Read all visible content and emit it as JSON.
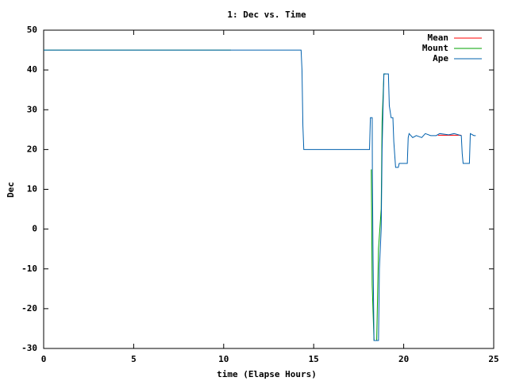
{
  "chart_data": {
    "type": "line",
    "title": "1: Dec vs. Time",
    "x_label": "time (Elapse Hours)",
    "y_label": "Dec",
    "xlim": [
      0,
      25
    ],
    "xticks": [
      0,
      5,
      10,
      15,
      20,
      25
    ],
    "ylim": [
      -30,
      50
    ],
    "yticks": [
      -30,
      -20,
      -10,
      0,
      10,
      20,
      30,
      40,
      50
    ],
    "legend": "top-right",
    "series": [
      {
        "name": "Mean",
        "color": "#ff0000",
        "x": [
          21.9,
          22.5,
          23.2
        ],
        "values": [
          23.6,
          23.6,
          23.6
        ]
      },
      {
        "name": "Mount",
        "color": "#00a000",
        "x": [
          0,
          10.4,
          10.5,
          18.2,
          18.25,
          18.35,
          18.5,
          18.6,
          18.75,
          18.8,
          18.9,
          19.0
        ],
        "values": [
          45,
          45,
          null,
          15,
          -14,
          -28,
          -28,
          -5,
          5,
          27,
          39,
          39
        ]
      },
      {
        "name": "Ape",
        "color": "#0060ad",
        "x": [
          0,
          14.3,
          14.35,
          14.4,
          14.45,
          18.1,
          18.15,
          18.25,
          18.26,
          18.3,
          18.35,
          18.6,
          18.65,
          18.75,
          18.8,
          18.85,
          18.9,
          19.15,
          19.2,
          19.3,
          19.4,
          19.45,
          19.55,
          19.7,
          19.75,
          20.2,
          20.25,
          20.3,
          20.5,
          20.7,
          21.0,
          21.2,
          21.5,
          21.8,
          22.0,
          22.5,
          22.8,
          23.2,
          23.25,
          23.3,
          23.65,
          23.7,
          23.9,
          24.0
        ],
        "values": [
          45,
          45,
          40,
          26,
          20,
          20,
          28,
          28,
          14,
          -8,
          -28,
          -28,
          -10,
          0,
          20,
          30,
          39,
          39,
          31,
          28,
          28,
          22,
          15.5,
          15.5,
          16.5,
          16.5,
          23,
          24,
          23,
          23.5,
          23,
          24,
          23.5,
          23.5,
          24,
          23.7,
          24,
          23.5,
          19,
          16.5,
          16.5,
          24,
          23.5,
          23.5
        ]
      }
    ]
  }
}
